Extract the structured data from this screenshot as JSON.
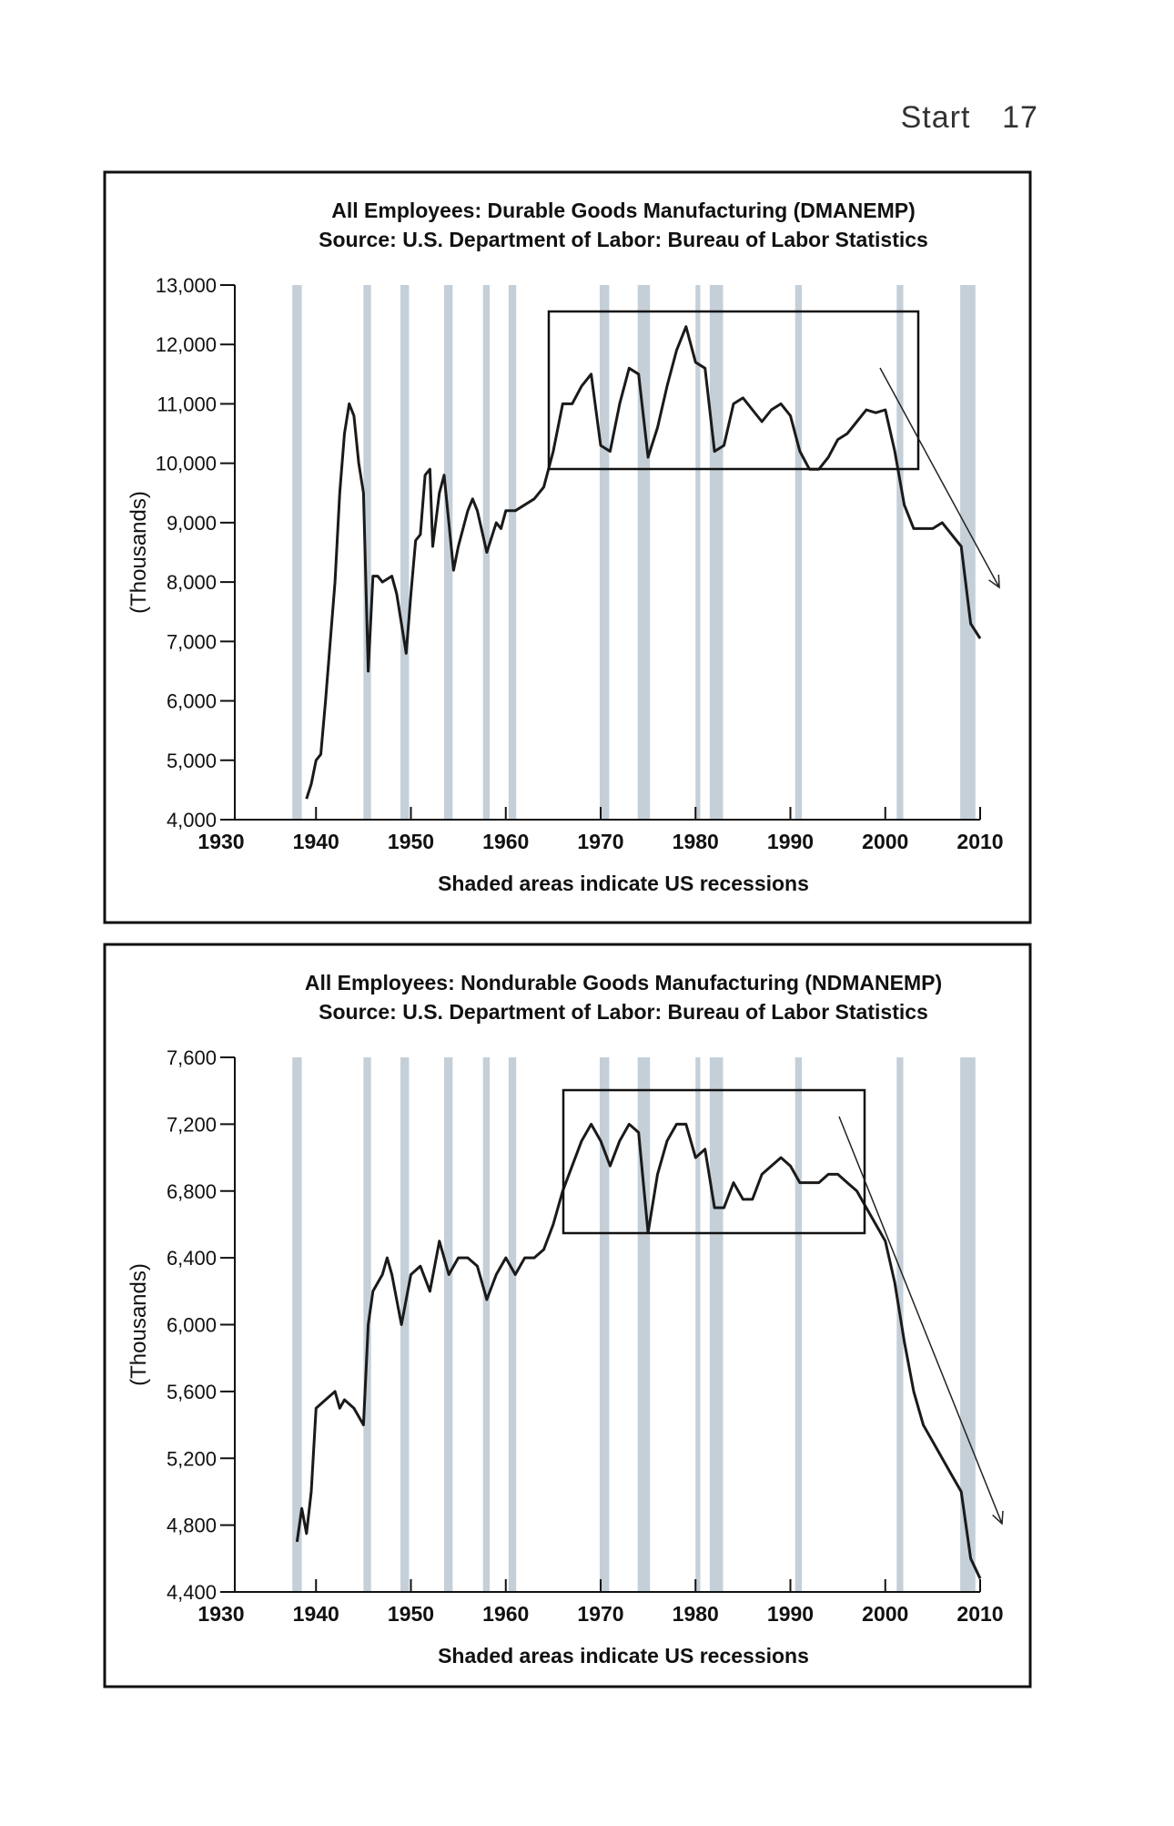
{
  "header": {
    "section": "Start",
    "page": "17"
  },
  "chart_data": [
    {
      "type": "line",
      "title": "All Employees: Durable Goods Manufacturing (DMANEMP)",
      "subtitle": "Source: U.S. Department of Labor: Bureau of Labor Statistics",
      "ylabel": "(Thousands)",
      "xlabel": "Shaded areas indicate US recessions",
      "color": "#1a1a1a",
      "shade_color": "#c5cfd8",
      "xlim": [
        1930,
        2010
      ],
      "xticks": [
        1930,
        1940,
        1950,
        1960,
        1970,
        1980,
        1990,
        2000,
        2010
      ],
      "ylim": [
        4000,
        13000
      ],
      "yticks": [
        {
          "value": 4000,
          "label": "4,000"
        },
        {
          "value": 5000,
          "label": "5,000"
        },
        {
          "value": 6000,
          "label": "6,000"
        },
        {
          "value": 7000,
          "label": "7,000"
        },
        {
          "value": 8000,
          "label": "8,000"
        },
        {
          "value": 9000,
          "label": "9,000"
        },
        {
          "value": 10000,
          "label": "10,000"
        },
        {
          "value": 11000,
          "label": "11,000"
        },
        {
          "value": 12000,
          "label": "12,000"
        },
        {
          "value": 13000,
          "label": "13,000"
        }
      ],
      "shaded_ranges": [
        [
          1937.5,
          1938.5
        ],
        [
          1945,
          1945.8
        ],
        [
          1948.9,
          1949.8
        ],
        [
          1953.5,
          1954.4
        ],
        [
          1957.6,
          1958.3
        ],
        [
          1960.3,
          1961.1
        ],
        [
          1969.9,
          1970.9
        ],
        [
          1973.9,
          1975.2
        ],
        [
          1980,
          1980.5
        ],
        [
          1981.5,
          1982.9
        ],
        [
          1990.5,
          1991.2
        ],
        [
          2001.2,
          2001.9
        ],
        [
          2007.9,
          2009.5
        ]
      ],
      "x": [
        1939,
        1939.5,
        1940,
        1940.5,
        1941,
        1941.5,
        1942,
        1942.5,
        1943,
        1943.5,
        1944,
        1944.5,
        1945,
        1945.5,
        1946,
        1946.5,
        1947,
        1948,
        1948.5,
        1949.5,
        1950,
        1950.5,
        1951,
        1951.5,
        1952,
        1952.3,
        1953,
        1953.5,
        1954,
        1954.5,
        1955,
        1956,
        1956.5,
        1957,
        1958,
        1959,
        1959.5,
        1960,
        1961,
        1962,
        1963,
        1964,
        1965,
        1966,
        1967,
        1968,
        1969,
        1970,
        1971,
        1972,
        1973,
        1974,
        1975,
        1976,
        1977,
        1978,
        1979,
        1980,
        1981,
        1982,
        1983,
        1984,
        1985,
        1986,
        1987,
        1988,
        1989,
        1990,
        1991,
        1992,
        1993,
        1994,
        1995,
        1996,
        1997,
        1998,
        1999,
        2000,
        2001,
        2002,
        2003,
        2004,
        2005,
        2006,
        2007,
        2008,
        2009,
        2010
      ],
      "values": [
        4350,
        4600,
        5000,
        5100,
        6000,
        7000,
        8000,
        9500,
        10500,
        11000,
        10800,
        10000,
        9500,
        6500,
        8100,
        8100,
        8000,
        8100,
        7800,
        6800,
        7800,
        8700,
        8800,
        9800,
        9900,
        8600,
        9500,
        9800,
        9000,
        8200,
        8600,
        9200,
        9400,
        9200,
        8500,
        9000,
        8900,
        9200,
        9200,
        9300,
        9400,
        9600,
        10200,
        11000,
        11000,
        11300,
        11500,
        10300,
        10200,
        11000,
        11600,
        11500,
        10100,
        10600,
        11300,
        11900,
        12300,
        11700,
        11600,
        10200,
        10300,
        11000,
        11100,
        10900,
        10700,
        10900,
        11000,
        10800,
        10200,
        9900,
        9900,
        10100,
        10400,
        10500,
        10700,
        10900,
        10850,
        10900,
        10200,
        9300,
        8900,
        8900,
        8900,
        9000,
        8800,
        8600,
        7300,
        7050
      ]
    },
    {
      "type": "line",
      "title": "All Employees: Nondurable Goods Manufacturing (NDMANEMP)",
      "subtitle": "Source: U.S. Department of Labor: Bureau of Labor Statistics",
      "ylabel": "(Thousands)",
      "xlabel": "Shaded areas indicate US recessions",
      "color": "#1a1a1a",
      "shade_color": "#c5cfd8",
      "xlim": [
        1930,
        2010
      ],
      "xticks": [
        1930,
        1940,
        1950,
        1960,
        1970,
        1980,
        1990,
        2000,
        2010
      ],
      "ylim": [
        4400,
        7600
      ],
      "yticks": [
        {
          "value": 4400,
          "label": "4,400"
        },
        {
          "value": 4800,
          "label": "4,800"
        },
        {
          "value": 5200,
          "label": "5,200"
        },
        {
          "value": 5600,
          "label": "5,600"
        },
        {
          "value": 6000,
          "label": "6,000"
        },
        {
          "value": 6400,
          "label": "6,400"
        },
        {
          "value": 6800,
          "label": "6,800"
        },
        {
          "value": 7200,
          "label": "7,200"
        },
        {
          "value": 7600,
          "label": "7,600"
        }
      ],
      "shaded_ranges": [
        [
          1937.5,
          1938.5
        ],
        [
          1945,
          1945.8
        ],
        [
          1948.9,
          1949.8
        ],
        [
          1953.5,
          1954.4
        ],
        [
          1957.6,
          1958.3
        ],
        [
          1960.3,
          1961.1
        ],
        [
          1969.9,
          1970.9
        ],
        [
          1973.9,
          1975.2
        ],
        [
          1980,
          1980.5
        ],
        [
          1981.5,
          1982.9
        ],
        [
          1990.5,
          1991.2
        ],
        [
          2001.2,
          2001.9
        ],
        [
          2007.9,
          2009.5
        ]
      ],
      "x": [
        1938,
        1938.5,
        1939,
        1939.5,
        1940,
        1941,
        1942,
        1942.5,
        1943,
        1944,
        1945,
        1945.5,
        1946,
        1947,
        1947.5,
        1948,
        1949,
        1950,
        1951,
        1952,
        1953,
        1954,
        1955,
        1956,
        1957,
        1958,
        1959,
        1960,
        1961,
        1962,
        1963,
        1964,
        1965,
        1966,
        1967,
        1968,
        1969,
        1970,
        1971,
        1972,
        1973,
        1974,
        1975,
        1976,
        1977,
        1978,
        1979,
        1980,
        1981,
        1982,
        1983,
        1984,
        1985,
        1986,
        1987,
        1988,
        1989,
        1990,
        1991,
        1992,
        1993,
        1994,
        1995,
        1996,
        1997,
        1998,
        1999,
        2000,
        2001,
        2002,
        2003,
        2004,
        2005,
        2006,
        2007,
        2008,
        2009,
        2010
      ],
      "values": [
        4700,
        4900,
        4750,
        5000,
        5500,
        5550,
        5600,
        5500,
        5550,
        5500,
        5400,
        6000,
        6200,
        6300,
        6400,
        6300,
        6000,
        6300,
        6350,
        6200,
        6500,
        6300,
        6400,
        6400,
        6350,
        6150,
        6300,
        6400,
        6300,
        6400,
        6400,
        6450,
        6600,
        6800,
        6950,
        7100,
        7200,
        7100,
        6950,
        7100,
        7200,
        7150,
        6550,
        6900,
        7100,
        7200,
        7200,
        7000,
        7050,
        6700,
        6700,
        6850,
        6750,
        6750,
        6900,
        6950,
        7000,
        6950,
        6850,
        6850,
        6850,
        6900,
        6900,
        6850,
        6800,
        6700,
        6600,
        6500,
        6250,
        5900,
        5600,
        5400,
        5300,
        5200,
        5100,
        5000,
        4600,
        4480
      ]
    }
  ]
}
